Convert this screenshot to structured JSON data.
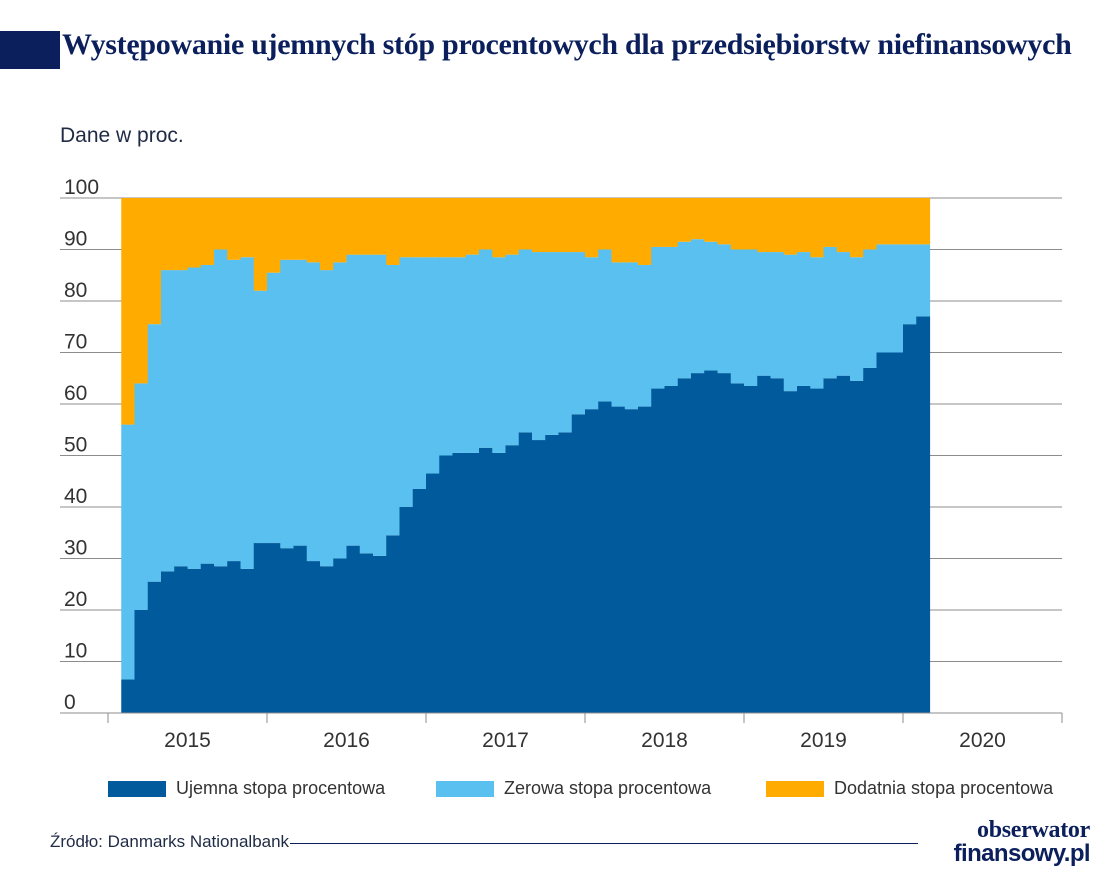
{
  "title_first_letter": "W",
  "title_rest": "ystępowanie ujemnych stóp procentowych dla przedsiębiorstw niefinansowych",
  "unit_label": "Dane w proc.",
  "source": "Źródło: Danmarks Nationalbank",
  "logo": {
    "line1": "obserwator",
    "line2": "finansowy.pl"
  },
  "colors": {
    "negative": "#005a9c",
    "zero": "#59c0f0",
    "positive": "#ffab00",
    "title": "#0b1f5c"
  },
  "chart_data": {
    "type": "area",
    "stacked": true,
    "step": true,
    "ylim": [
      0,
      100
    ],
    "yticks": [
      "0",
      "10",
      "20",
      "30",
      "40",
      "50",
      "60",
      "70",
      "80",
      "90",
      "100"
    ],
    "xticks": [
      "2015",
      "2016",
      "2017",
      "2018",
      "2019",
      "2020"
    ],
    "x_start": "2015-01",
    "x_end": "2020-01",
    "grid": true,
    "legend_position": "bottom",
    "series": [
      {
        "name": "Ujemna stopa procentowa",
        "values": [
          6.5,
          20,
          25.5,
          27.5,
          28.5,
          28,
          29,
          28.5,
          29.5,
          28,
          33,
          33,
          32,
          32.5,
          29.5,
          28.5,
          30,
          32.5,
          31,
          30.5,
          34.5,
          40,
          43.5,
          46.5,
          50,
          50.5,
          50.5,
          51.5,
          50.5,
          52,
          54.5,
          53,
          54,
          54.5,
          58,
          59,
          60.5,
          59.5,
          59,
          59.5,
          63,
          63.5,
          65,
          66,
          66.5,
          66,
          64,
          63.5,
          65.5,
          65,
          62.5,
          63.5,
          63,
          65,
          65.5,
          64.5,
          67,
          70,
          70,
          75.5,
          77
        ]
      },
      {
        "name": "Zerowa stopa procentowa",
        "values": [
          49.5,
          44,
          50,
          58.5,
          57.5,
          58.5,
          58,
          61.5,
          58.5,
          60.5,
          49,
          52.5,
          56,
          55.5,
          58,
          57.5,
          57.5,
          56.5,
          58,
          58.5,
          52.5,
          48.5,
          45,
          42,
          38.5,
          38,
          38.5,
          38.5,
          38,
          37,
          35.5,
          36.5,
          35.5,
          35,
          31.5,
          29.5,
          29.5,
          28,
          28.5,
          27.5,
          27.5,
          27,
          26.5,
          26,
          25,
          25,
          26,
          26.5,
          24,
          24.5,
          26.5,
          26,
          25.5,
          25.5,
          24,
          24,
          23,
          21,
          21,
          15.5,
          14
        ]
      },
      {
        "name": "Dodatnia stopa procentowa",
        "values": [
          44,
          36,
          24.5,
          14,
          14,
          13.5,
          13,
          10,
          12,
          11.5,
          18,
          14.5,
          12,
          12,
          12.5,
          14,
          12.5,
          11,
          11,
          11,
          13,
          11.5,
          11.5,
          11.5,
          11.5,
          11.5,
          11,
          10,
          11.5,
          11,
          10,
          10.5,
          10.5,
          10.5,
          10.5,
          11.5,
          10,
          12.5,
          12.5,
          13,
          9.5,
          9.5,
          8.5,
          8,
          8.5,
          9,
          10,
          10,
          10.5,
          10.5,
          11,
          10.5,
          11.5,
          9.5,
          10.5,
          11.5,
          10,
          9,
          9,
          9,
          9
        ]
      }
    ]
  }
}
